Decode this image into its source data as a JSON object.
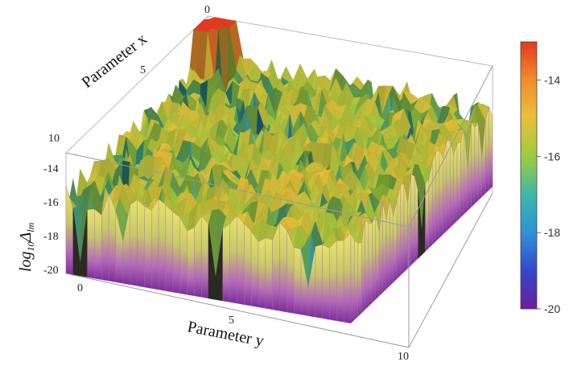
{
  "chart_data": {
    "type": "surface3d",
    "x_label": "Parameter x",
    "y_label": "Parameter y",
    "z_label": "log",
    "z_label_sub": "10",
    "z_label_symbol": "Δ",
    "z_label_symbol_sub": "lm",
    "x_ticks": [
      "0",
      "5",
      "10"
    ],
    "y_ticks": [
      "0",
      "5",
      "10"
    ],
    "z_ticks": [
      "-14",
      "-16",
      "-18",
      "-20"
    ],
    "xlim": [
      0,
      10
    ],
    "ylim": [
      0,
      10
    ],
    "zlim": [
      -20,
      -13
    ],
    "colorbar_ticks": [
      "-14",
      "-16",
      "-18",
      "-20"
    ],
    "colorbar_range": [
      -20,
      -13
    ],
    "colormap": [
      "#6b1f9e",
      "#3446c8",
      "#2f8fd8",
      "#39b7a8",
      "#9ccc3f",
      "#e8c03a",
      "#f08a2c",
      "#e23a1f"
    ],
    "peak": {
      "x": 0,
      "y": 0,
      "z": -13.2
    },
    "typical_level": -15.5,
    "floor": -20
  }
}
